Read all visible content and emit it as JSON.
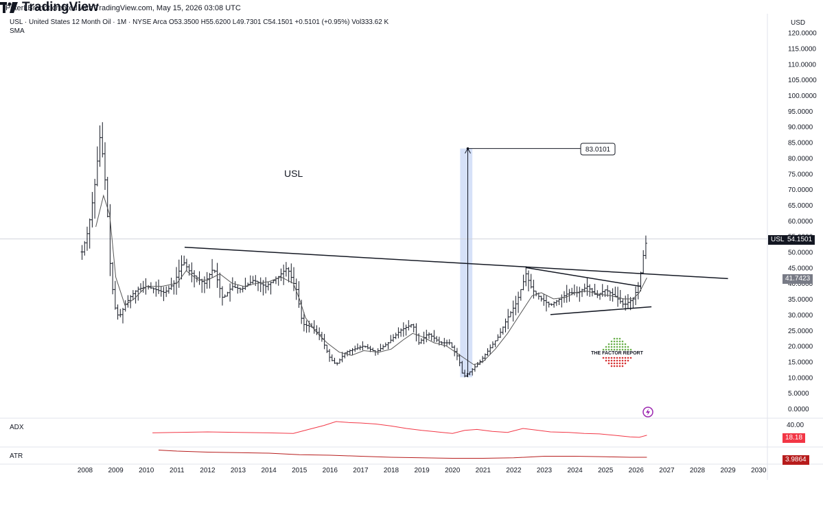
{
  "header": {
    "credit": "PeterLBrandt created with TradingView.com, May 15, 2026 03:08 UTC"
  },
  "legend": {
    "line": "USL · United States 12 Month Oil · 1M · NYSE Arca  O53.3500  H55.6200  L49.7301  C54.1501  +0.5101 (+0.95%)  Vol333.62 K",
    "indicator": "SMA"
  },
  "annotations": {
    "symbol_label": "USL",
    "measure_value": "83.0101",
    "factor_report": "THE FACTOR REPORT"
  },
  "axis": {
    "currency": "USD"
  },
  "badges": {
    "usl_name": "USL",
    "usl_price": "54.1501",
    "sma_value": "41.7423",
    "adx_value": "18.18",
    "atr_value": "3.9864"
  },
  "panes": {
    "adx_label": "ADX",
    "adx_tick": "40.00",
    "atr_label": "ATR"
  },
  "footer": {
    "brand": "TradingView"
  },
  "colors": {
    "price_bars": "#131722",
    "sma": "#555555",
    "adx": "#f23645",
    "atr": "#b71c1c",
    "highlight": "#cfdcf7"
  },
  "chart_data": {
    "type": "ohlc-bar",
    "symbol": "USL",
    "interval": "1M",
    "y_ticks": [
      0,
      5,
      10,
      15,
      20,
      25,
      30,
      35,
      40,
      45,
      50,
      55,
      60,
      65,
      70,
      75,
      80,
      85,
      90,
      95,
      100,
      105,
      110,
      115,
      120
    ],
    "y_tick_labels": [
      "0.0000",
      "5.0000",
      "10.0000",
      "15.0000",
      "20.0000",
      "25.0000",
      "30.0000",
      "35.0000",
      "40.0000",
      "45.0000",
      "50.0000",
      "55.0000",
      "60.0000",
      "65.0000",
      "70.0000",
      "75.0000",
      "80.0000",
      "85.0000",
      "90.0000",
      "95.0000",
      "100.0000",
      "105.0000",
      "110.0000",
      "115.0000",
      "120.0000"
    ],
    "ylim": [
      0,
      120
    ],
    "x_ticks": [
      "2008",
      "2009",
      "2010",
      "2011",
      "2012",
      "2013",
      "2014",
      "2015",
      "2016",
      "2017",
      "2018",
      "2019",
      "2020",
      "2021",
      "2022",
      "2023",
      "2024",
      "2025",
      "2026",
      "2027",
      "2028",
      "2029",
      "2030"
    ],
    "xlim": [
      2008.0,
      2030.6
    ],
    "price_path": [
      [
        2007.9,
        50
      ],
      [
        2008.1,
        57
      ],
      [
        2008.3,
        70
      ],
      [
        2008.5,
        88
      ],
      [
        2008.7,
        68
      ],
      [
        2008.8,
        48
      ],
      [
        2008.95,
        33
      ],
      [
        2009.1,
        29
      ],
      [
        2009.3,
        33
      ],
      [
        2009.5,
        36
      ],
      [
        2009.7,
        38
      ],
      [
        2010.0,
        39
      ],
      [
        2010.3,
        38
      ],
      [
        2010.6,
        37
      ],
      [
        2010.9,
        40
      ],
      [
        2011.2,
        47
      ],
      [
        2011.4,
        44
      ],
      [
        2011.6,
        42
      ],
      [
        2011.9,
        40
      ],
      [
        2012.2,
        45
      ],
      [
        2012.5,
        35
      ],
      [
        2012.8,
        39
      ],
      [
        2013.1,
        38
      ],
      [
        2013.5,
        41
      ],
      [
        2013.9,
        39
      ],
      [
        2014.3,
        42
      ],
      [
        2014.6,
        45
      ],
      [
        2014.9,
        38
      ],
      [
        2015.1,
        27
      ],
      [
        2015.4,
        26
      ],
      [
        2015.7,
        23
      ],
      [
        2016.0,
        16
      ],
      [
        2016.2,
        14
      ],
      [
        2016.5,
        18
      ],
      [
        2016.8,
        19
      ],
      [
        2017.1,
        20
      ],
      [
        2017.5,
        18
      ],
      [
        2017.9,
        21
      ],
      [
        2018.3,
        25
      ],
      [
        2018.7,
        27
      ],
      [
        2018.9,
        21
      ],
      [
        2019.2,
        24
      ],
      [
        2019.6,
        21
      ],
      [
        2019.9,
        21
      ],
      [
        2020.2,
        16
      ],
      [
        2020.35,
        10
      ],
      [
        2020.6,
        12
      ],
      [
        2020.9,
        15
      ],
      [
        2021.2,
        19
      ],
      [
        2021.5,
        23
      ],
      [
        2021.8,
        29
      ],
      [
        2022.1,
        34
      ],
      [
        2022.4,
        43
      ],
      [
        2022.6,
        38
      ],
      [
        2022.9,
        35
      ],
      [
        2023.2,
        33
      ],
      [
        2023.5,
        35
      ],
      [
        2023.8,
        37
      ],
      [
        2024.1,
        37
      ],
      [
        2024.4,
        39
      ],
      [
        2024.7,
        36
      ],
      [
        2025.0,
        38
      ],
      [
        2025.3,
        36
      ],
      [
        2025.6,
        33
      ],
      [
        2025.9,
        35
      ],
      [
        2026.1,
        40
      ],
      [
        2026.25,
        50
      ],
      [
        2026.35,
        54.15
      ]
    ],
    "sma_path": [
      [
        2008.35,
        58
      ],
      [
        2008.6,
        68
      ],
      [
        2008.8,
        62
      ],
      [
        2009.0,
        42
      ],
      [
        2009.3,
        33
      ],
      [
        2009.6,
        35
      ],
      [
        2010.0,
        39
      ],
      [
        2010.5,
        39
      ],
      [
        2011.0,
        40
      ],
      [
        2011.3,
        44
      ],
      [
        2011.7,
        41
      ],
      [
        2012.0,
        41
      ],
      [
        2012.4,
        43
      ],
      [
        2012.8,
        40
      ],
      [
        2013.2,
        39
      ],
      [
        2013.6,
        40
      ],
      [
        2014.0,
        40.5
      ],
      [
        2014.4,
        42
      ],
      [
        2014.8,
        40
      ],
      [
        2015.0,
        35
      ],
      [
        2015.2,
        29
      ],
      [
        2015.5,
        25
      ],
      [
        2015.9,
        21
      ],
      [
        2016.3,
        18
      ],
      [
        2016.7,
        17
      ],
      [
        2017.1,
        18.5
      ],
      [
        2017.6,
        18
      ],
      [
        2018.0,
        19
      ],
      [
        2018.4,
        22
      ],
      [
        2018.7,
        24
      ],
      [
        2019.0,
        23
      ],
      [
        2019.4,
        21
      ],
      [
        2019.8,
        20
      ],
      [
        2020.1,
        18
      ],
      [
        2020.4,
        16
      ],
      [
        2020.7,
        14
      ],
      [
        2021.0,
        15
      ],
      [
        2021.4,
        19
      ],
      [
        2021.8,
        24
      ],
      [
        2022.2,
        30
      ],
      [
        2022.6,
        36
      ],
      [
        2022.9,
        37
      ],
      [
        2023.3,
        35
      ],
      [
        2023.7,
        35.5
      ],
      [
        2024.0,
        37
      ],
      [
        2024.4,
        37.5
      ],
      [
        2024.8,
        36.5
      ],
      [
        2025.2,
        36
      ],
      [
        2025.6,
        35
      ],
      [
        2025.9,
        35
      ],
      [
        2026.1,
        37
      ],
      [
        2026.35,
        41.7423
      ]
    ],
    "trendlines": [
      {
        "name": "neckline",
        "from": [
          2011.25,
          51.5
        ],
        "to": [
          2029.0,
          41.5
        ]
      },
      {
        "name": "triangle-top",
        "from": [
          2022.4,
          45
        ],
        "to": [
          2026.15,
          39
        ]
      },
      {
        "name": "triangle-bottom",
        "from": [
          2023.2,
          30
        ],
        "to": [
          2026.5,
          32.5
        ]
      }
    ],
    "measure": {
      "x": 2020.5,
      "y_from": 10,
      "y_to": 83.0101,
      "label": "83.0101",
      "highlight_x": [
        2020.25,
        2020.65
      ]
    },
    "last_price": 54.1501,
    "last_sma": 41.7423,
    "adx": {
      "label": "ADX",
      "last": 18.18,
      "ylim": [
        0,
        50
      ],
      "path": [
        [
          2010.2,
          23
        ],
        [
          2011.0,
          24
        ],
        [
          2012.0,
          25
        ],
        [
          2013.0,
          24
        ],
        [
          2014.0,
          23
        ],
        [
          2014.8,
          22
        ],
        [
          2015.3,
          30
        ],
        [
          2015.8,
          38
        ],
        [
          2016.2,
          46
        ],
        [
          2016.6,
          44
        ],
        [
          2017.0,
          43
        ],
        [
          2017.5,
          41
        ],
        [
          2018.0,
          37
        ],
        [
          2018.5,
          32
        ],
        [
          2019.0,
          28
        ],
        [
          2019.5,
          25
        ],
        [
          2020.0,
          22
        ],
        [
          2020.4,
          28
        ],
        [
          2020.8,
          30
        ],
        [
          2021.3,
          26
        ],
        [
          2021.8,
          24
        ],
        [
          2022.3,
          32
        ],
        [
          2022.7,
          29
        ],
        [
          2023.2,
          25
        ],
        [
          2023.8,
          24
        ],
        [
          2024.3,
          22
        ],
        [
          2024.8,
          21
        ],
        [
          2025.3,
          18
        ],
        [
          2025.8,
          15
        ],
        [
          2026.1,
          14
        ],
        [
          2026.35,
          18.18
        ]
      ]
    },
    "atr": {
      "label": "ATR",
      "last": 3.9864,
      "ylim": [
        0,
        12
      ],
      "path": [
        [
          2010.4,
          11
        ],
        [
          2011.0,
          10
        ],
        [
          2012.0,
          9
        ],
        [
          2013.0,
          8.5
        ],
        [
          2014.0,
          8
        ],
        [
          2015.0,
          6.5
        ],
        [
          2016.0,
          6
        ],
        [
          2017.0,
          5
        ],
        [
          2018.0,
          4
        ],
        [
          2019.0,
          3.5
        ],
        [
          2020.0,
          3
        ],
        [
          2021.0,
          3
        ],
        [
          2022.0,
          3.5
        ],
        [
          2023.0,
          5
        ],
        [
          2024.0,
          5
        ],
        [
          2025.0,
          4.5
        ],
        [
          2025.8,
          4
        ],
        [
          2026.35,
          3.9864
        ]
      ]
    }
  }
}
